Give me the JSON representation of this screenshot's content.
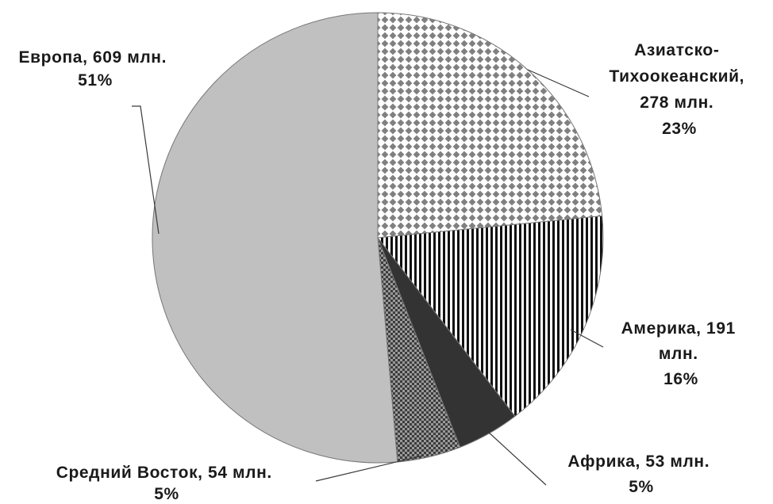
{
  "chart_data": {
    "type": "pie",
    "title": "",
    "slices": [
      {
        "label": "Азиатско-Тихоокеанский",
        "value": 278,
        "percent": 23,
        "pattern": "diamond",
        "label_lines": [
          "Азиатско-",
          "Тихоокеанский,",
          "278 млн.",
          "23%"
        ]
      },
      {
        "label": "Америка",
        "value": 191,
        "percent": 16,
        "pattern": "vertical-stripes",
        "label_lines": [
          "Америка, 191",
          "млн.",
          "16%"
        ]
      },
      {
        "label": "Африка",
        "value": 53,
        "percent": 5,
        "pattern": "solid-dark",
        "label_lines": [
          "Африка, 53 млн.",
          "5%"
        ]
      },
      {
        "label": "Средний Восток",
        "value": 54,
        "percent": 5,
        "pattern": "dark-checker",
        "label_lines": [
          "Средний Восток, 54 млн.",
          "5%"
        ]
      },
      {
        "label": "Европа",
        "value": 609,
        "percent": 51,
        "pattern": "solid-light",
        "label_lines": [
          "Европа, 609 млн.",
          "51%"
        ]
      }
    ],
    "start": "top",
    "direction": "clockwise",
    "legend": "none",
    "colors": {
      "light_gray": "#c0c0c0",
      "dark": "#333333",
      "edge": "#777777",
      "pattern_dark": "#444444"
    }
  }
}
